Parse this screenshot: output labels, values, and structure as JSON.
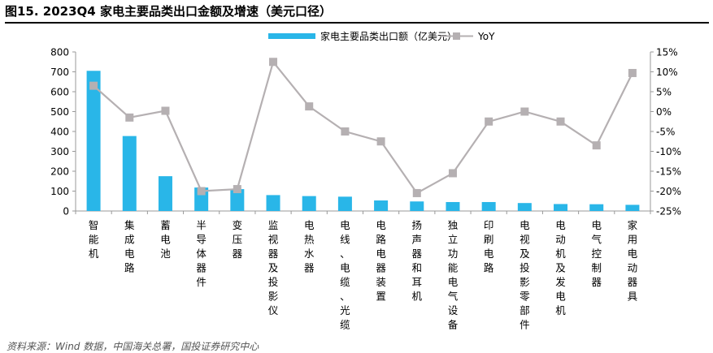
{
  "header": {
    "title": "图15. 2023Q4 家电主要品类出口金额及增速（美元口径）"
  },
  "footer": {
    "source": "资料来源：Wind 数据，中国海关总署，国投证券研究中心"
  },
  "colors": {
    "bar": "#29B6E8",
    "line": "#B5B0B2",
    "axis": "#999999"
  },
  "chart_data": {
    "type": "bar",
    "categories": [
      "智能机",
      "集成电路",
      "蓄电池",
      "半导体器件",
      "变压器",
      "监视器及投影仪",
      "电热水器",
      "电线、电缆、光缆",
      "电路电器装置",
      "扬声器和耳机",
      "独立功能电气设备",
      "印刷电路",
      "电视及投影零部件",
      "电动机及发电机",
      "电气控制器",
      "家用电动器具"
    ],
    "series": [
      {
        "name": "家电主要品类出口额（亿美元）",
        "type": "bar",
        "axis": "left",
        "values": [
          705,
          377,
          175,
          118,
          110,
          80,
          75,
          72,
          53,
          48,
          45,
          45,
          40,
          35,
          34,
          31
        ]
      },
      {
        "name": "YoY",
        "type": "line",
        "axis": "right",
        "values": [
          6.5,
          -1.5,
          0.2,
          -20,
          -19.5,
          12.5,
          1.3,
          -5,
          -7.5,
          -20.5,
          -15.5,
          -2.5,
          0,
          -2.5,
          -8.5,
          9.7
        ]
      }
    ],
    "y_left": {
      "min": 0,
      "max": 800,
      "step": 100,
      "ticks": [
        "0",
        "100",
        "200",
        "300",
        "400",
        "500",
        "600",
        "700",
        "800"
      ]
    },
    "y_right": {
      "min": -25,
      "max": 15,
      "step": 5,
      "ticks": [
        "-25%",
        "-20%",
        "-15%",
        "-10%",
        "-5%",
        "0%",
        "5%",
        "10%",
        "15%"
      ]
    },
    "legend": {
      "bar_label": "家电主要品类出口额（亿美元）",
      "line_label": "YoY",
      "position": "top"
    }
  }
}
